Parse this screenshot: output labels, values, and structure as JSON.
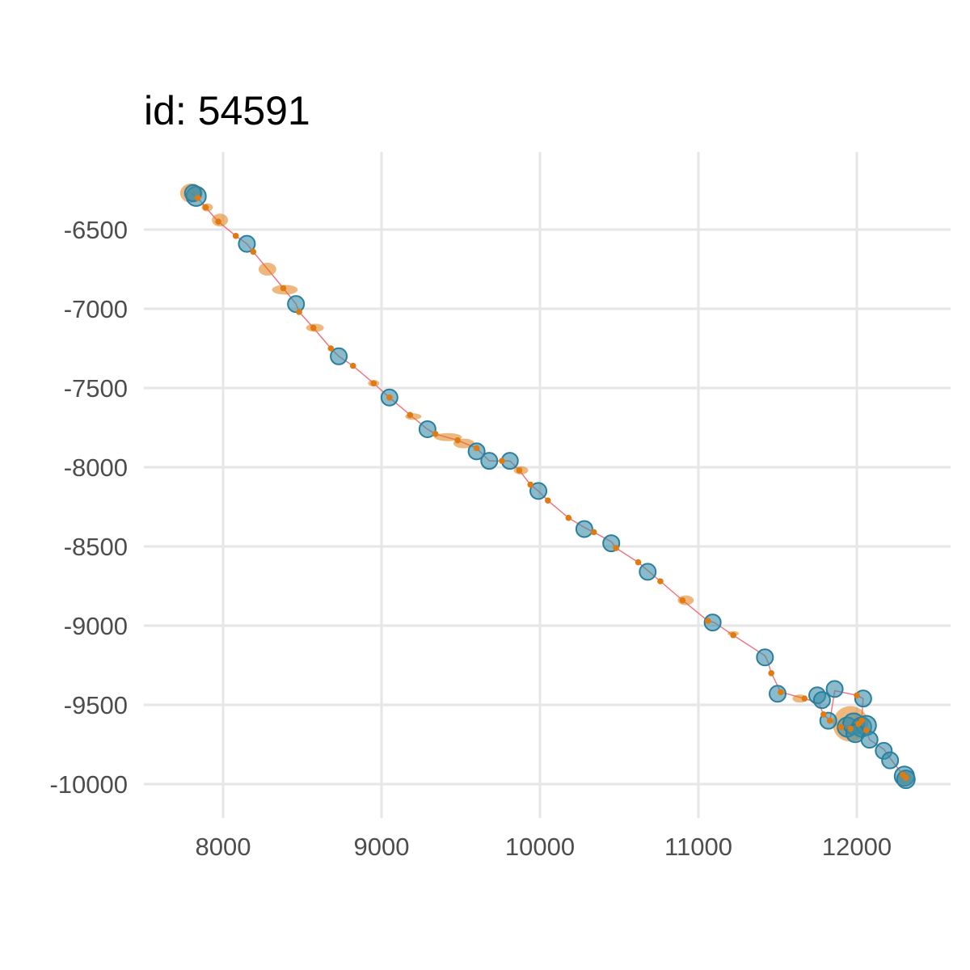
{
  "chart_data": {
    "type": "scatter",
    "title": "id: 54591",
    "xlabel": "",
    "ylabel": "",
    "xlim": [
      7500,
      12600
    ],
    "ylim": [
      -10200,
      -6200
    ],
    "x_ticks": [
      8000,
      9000,
      10000,
      11000,
      12000
    ],
    "y_ticks": [
      -6500,
      -7000,
      -7500,
      -8000,
      -8500,
      -9000,
      -9500,
      -10000
    ],
    "grid": true,
    "legend": "none",
    "colors": {
      "path": "#f07080",
      "estimate": "#e07b12",
      "observed": "#3a8ea9",
      "observed_edge": "#2a7f9e",
      "grid": "#e6e6e6",
      "tick_text": "#4d4d4d"
    },
    "path": [
      [
        7800,
        -6270
      ],
      [
        7840,
        -6300
      ],
      [
        7890,
        -6360
      ],
      [
        7970,
        -6450
      ],
      [
        8080,
        -6540
      ],
      [
        8150,
        -6590
      ],
      [
        8190,
        -6640
      ],
      [
        8290,
        -6760
      ],
      [
        8380,
        -6870
      ],
      [
        8460,
        -6970
      ],
      [
        8480,
        -7020
      ],
      [
        8570,
        -7120
      ],
      [
        8680,
        -7250
      ],
      [
        8730,
        -7300
      ],
      [
        8820,
        -7360
      ],
      [
        8950,
        -7470
      ],
      [
        9050,
        -7560
      ],
      [
        9180,
        -7670
      ],
      [
        9290,
        -7760
      ],
      [
        9340,
        -7790
      ],
      [
        9480,
        -7830
      ],
      [
        9600,
        -7880
      ],
      [
        9680,
        -7960
      ],
      [
        9760,
        -7960
      ],
      [
        9810,
        -7960
      ],
      [
        9870,
        -8020
      ],
      [
        9940,
        -8110
      ],
      [
        9990,
        -8150
      ],
      [
        10050,
        -8210
      ],
      [
        10180,
        -8320
      ],
      [
        10280,
        -8380
      ],
      [
        10340,
        -8410
      ],
      [
        10450,
        -8470
      ],
      [
        10480,
        -8510
      ],
      [
        10620,
        -8600
      ],
      [
        10690,
        -8660
      ],
      [
        10760,
        -8720
      ],
      [
        10900,
        -8840
      ],
      [
        11060,
        -8970
      ],
      [
        11100,
        -8980
      ],
      [
        11220,
        -9060
      ],
      [
        11420,
        -9190
      ],
      [
        11440,
        -9230
      ],
      [
        11460,
        -9300
      ],
      [
        11520,
        -9420
      ],
      [
        11670,
        -9460
      ],
      [
        11760,
        -9490
      ],
      [
        11790,
        -9560
      ],
      [
        11830,
        -9600
      ],
      [
        11860,
        -9410
      ],
      [
        12000,
        -9440
      ],
      [
        12040,
        -9460
      ],
      [
        12030,
        -9600
      ],
      [
        11960,
        -9650
      ],
      [
        11900,
        -9640
      ],
      [
        12010,
        -9620
      ],
      [
        12060,
        -9660
      ],
      [
        12080,
        -9720
      ],
      [
        12170,
        -9780
      ],
      [
        12220,
        -9850
      ],
      [
        12290,
        -9940
      ],
      [
        12310,
        -9960
      ]
    ],
    "observed_points": [
      {
        "x": 7830,
        "y": -6290,
        "r": 12
      },
      {
        "x": 7810,
        "y": -6270,
        "r": 10
      },
      {
        "x": 8150,
        "y": -6590,
        "r": 10
      },
      {
        "x": 8460,
        "y": -6970,
        "r": 10
      },
      {
        "x": 8730,
        "y": -7300,
        "r": 10
      },
      {
        "x": 9050,
        "y": -7560,
        "r": 10
      },
      {
        "x": 9290,
        "y": -7760,
        "r": 10
      },
      {
        "x": 9600,
        "y": -7900,
        "r": 10
      },
      {
        "x": 9680,
        "y": -7960,
        "r": 10
      },
      {
        "x": 9810,
        "y": -7960,
        "r": 10
      },
      {
        "x": 9990,
        "y": -8150,
        "r": 10
      },
      {
        "x": 10280,
        "y": -8390,
        "r": 10
      },
      {
        "x": 10450,
        "y": -8480,
        "r": 10
      },
      {
        "x": 10680,
        "y": -8660,
        "r": 10
      },
      {
        "x": 11090,
        "y": -8980,
        "r": 10
      },
      {
        "x": 11420,
        "y": -9200,
        "r": 10
      },
      {
        "x": 11500,
        "y": -9430,
        "r": 10
      },
      {
        "x": 11750,
        "y": -9440,
        "r": 10
      },
      {
        "x": 11780,
        "y": -9470,
        "r": 10
      },
      {
        "x": 11860,
        "y": -9400,
        "r": 10
      },
      {
        "x": 12040,
        "y": -9460,
        "r": 10
      },
      {
        "x": 11820,
        "y": -9600,
        "r": 10
      },
      {
        "x": 11940,
        "y": -9640,
        "r": 12
      },
      {
        "x": 11980,
        "y": -9620,
        "r": 13
      },
      {
        "x": 12030,
        "y": -9640,
        "r": 12
      },
      {
        "x": 12060,
        "y": -9630,
        "r": 12
      },
      {
        "x": 11990,
        "y": -9680,
        "r": 11
      },
      {
        "x": 12080,
        "y": -9720,
        "r": 10
      },
      {
        "x": 12170,
        "y": -9790,
        "r": 10
      },
      {
        "x": 12210,
        "y": -9850,
        "r": 10
      },
      {
        "x": 12300,
        "y": -9950,
        "r": 12
      },
      {
        "x": 12310,
        "y": -9970,
        "r": 11
      }
    ],
    "estimate_ellipses": [
      {
        "x": 7800,
        "y": -6270,
        "rx": 14,
        "ry": 12
      },
      {
        "x": 7900,
        "y": -6360,
        "rx": 7,
        "ry": 5
      },
      {
        "x": 7980,
        "y": -6440,
        "rx": 10,
        "ry": 8
      },
      {
        "x": 8280,
        "y": -6750,
        "rx": 11,
        "ry": 8
      },
      {
        "x": 8390,
        "y": -6880,
        "rx": 16,
        "ry": 6
      },
      {
        "x": 8580,
        "y": -7120,
        "rx": 11,
        "ry": 5
      },
      {
        "x": 8950,
        "y": -7470,
        "rx": 7,
        "ry": 4
      },
      {
        "x": 9200,
        "y": -7680,
        "rx": 10,
        "ry": 4
      },
      {
        "x": 9420,
        "y": -7810,
        "rx": 17,
        "ry": 5
      },
      {
        "x": 9520,
        "y": -7850,
        "rx": 13,
        "ry": 6
      },
      {
        "x": 9880,
        "y": -8020,
        "rx": 9,
        "ry": 5
      },
      {
        "x": 10920,
        "y": -8840,
        "rx": 10,
        "ry": 6
      },
      {
        "x": 11220,
        "y": -9050,
        "rx": 7,
        "ry": 3
      },
      {
        "x": 11640,
        "y": -9460,
        "rx": 9,
        "ry": 5
      },
      {
        "x": 11960,
        "y": -9620,
        "rx": 22,
        "ry": 22
      },
      {
        "x": 12300,
        "y": -9960,
        "rx": 10,
        "ry": 8
      }
    ],
    "estimate_points": [
      [
        7840,
        -6300
      ],
      [
        7890,
        -6360
      ],
      [
        7970,
        -6450
      ],
      [
        8080,
        -6540
      ],
      [
        8190,
        -6640
      ],
      [
        8380,
        -6870
      ],
      [
        8480,
        -7020
      ],
      [
        8570,
        -7120
      ],
      [
        8680,
        -7250
      ],
      [
        8820,
        -7360
      ],
      [
        8950,
        -7470
      ],
      [
        9050,
        -7560
      ],
      [
        9180,
        -7670
      ],
      [
        9340,
        -7790
      ],
      [
        9480,
        -7830
      ],
      [
        9600,
        -7880
      ],
      [
        9760,
        -7960
      ],
      [
        9870,
        -8020
      ],
      [
        9940,
        -8110
      ],
      [
        10050,
        -8210
      ],
      [
        10180,
        -8320
      ],
      [
        10340,
        -8410
      ],
      [
        10480,
        -8510
      ],
      [
        10620,
        -8600
      ],
      [
        10760,
        -8720
      ],
      [
        10900,
        -8840
      ],
      [
        11060,
        -8970
      ],
      [
        11220,
        -9060
      ],
      [
        11460,
        -9300
      ],
      [
        11520,
        -9420
      ],
      [
        11670,
        -9460
      ],
      [
        11790,
        -9560
      ],
      [
        11830,
        -9600
      ],
      [
        12000,
        -9440
      ],
      [
        11900,
        -9640
      ],
      [
        12010,
        -9620
      ],
      [
        12060,
        -9660
      ],
      [
        11960,
        -9650
      ],
      [
        12030,
        -9600
      ],
      [
        12290,
        -9940
      ],
      [
        12310,
        -9960
      ]
    ]
  }
}
